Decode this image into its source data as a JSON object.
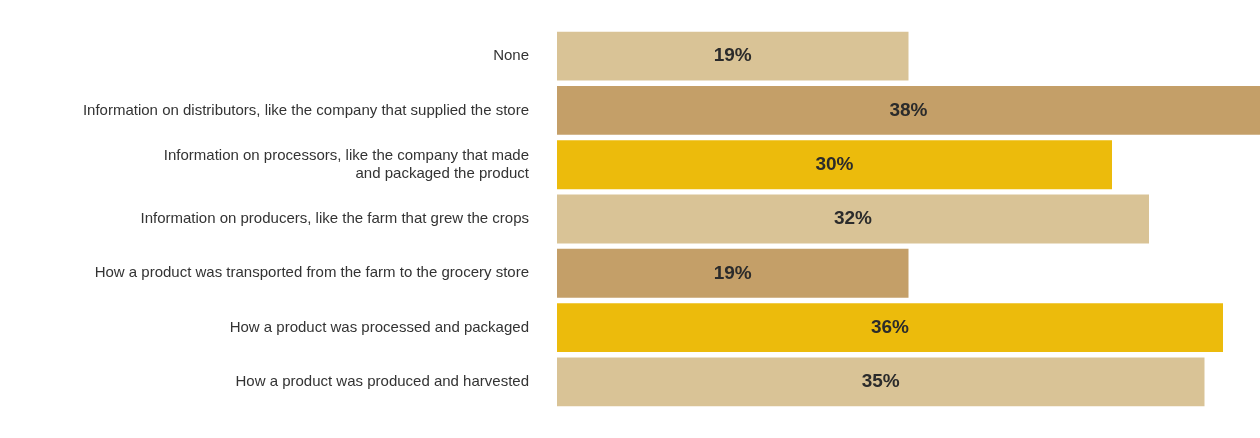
{
  "chart_data": {
    "type": "bar",
    "orientation": "horizontal",
    "tick_labels": "y",
    "categories": [
      "None",
      "Information on distributors, like the company that supplied the store",
      "Information on processors, like the company that made and packaged the product",
      "Information on producers, like the farm that grew the crops",
      "How a product was transported from the farm to the grocery store",
      "How a product was processed and packaged",
      "How a product was produced and harvested"
    ],
    "values": [
      19,
      38,
      30,
      32,
      19,
      36,
      35
    ],
    "colors": [
      "#d9c396",
      "#c49f68",
      "#ecbb0c",
      "#d9c396",
      "#c49f68",
      "#ecbb0c",
      "#d9c396"
    ],
    "value_labels": [
      "19%",
      "38%",
      "30%",
      "32%",
      "19%",
      "36%",
      "35%"
    ],
    "legend": false
  }
}
